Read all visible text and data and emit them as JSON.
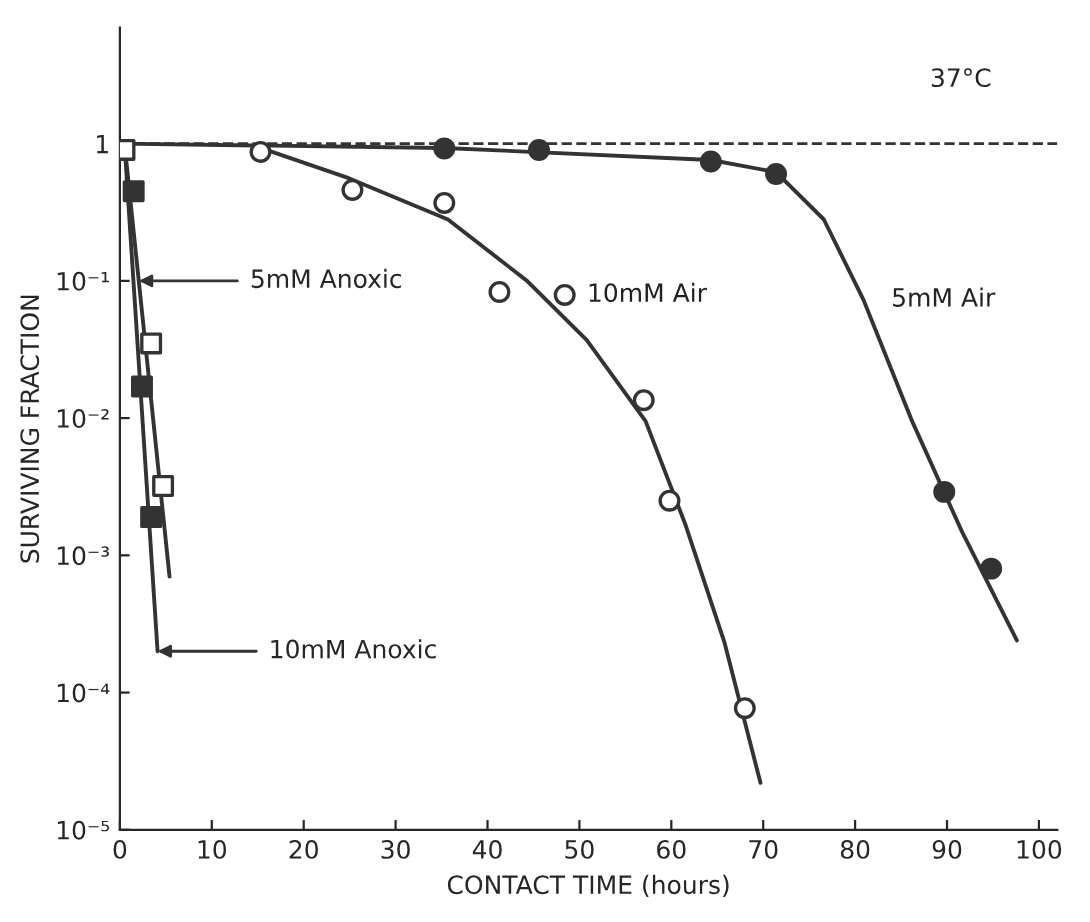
{
  "chart_data": {
    "type": "line",
    "xlabel": "CONTACT TIME (hours)",
    "ylabel": "SURVIVING FRACTION",
    "log": "y",
    "xlim": [
      0,
      102
    ],
    "xticks": [
      0,
      10,
      20,
      30,
      40,
      50,
      60,
      70,
      80,
      90,
      100
    ],
    "ylim": [
      1e-05,
      7
    ],
    "yticks": [
      {
        "value": 1,
        "label": "1"
      },
      {
        "value": 0.1,
        "label": "10⁻¹"
      },
      {
        "value": 0.01,
        "label": "10⁻²"
      },
      {
        "value": 0.001,
        "label": "10⁻³"
      },
      {
        "value": 0.0001,
        "label": "10⁻⁴"
      },
      {
        "value": 1e-05,
        "label": "10⁻⁵"
      }
    ],
    "grid": false,
    "legend": false,
    "ref_lines": [
      {
        "axis": "y",
        "value": 1,
        "color": "#333333",
        "line_style": "dashed"
      }
    ],
    "annotations": [
      "37°C",
      "5mM Anoxic",
      "10mM Anoxic"
    ],
    "series": [
      {
        "color": "#333333",
        "x": [
          15.3,
          24.9,
          35.7,
          44.3,
          50.8,
          57.2,
          61.5,
          65.8,
          69.7
        ],
        "values": [
          0.93,
          0.56,
          0.28,
          0.1,
          0.037,
          0.0095,
          0.0017,
          0.00023,
          2.2e-05
        ]
      },
      {
        "type": "scatter",
        "name": "10mM Air",
        "color": "#ffffff",
        "marker": "circle",
        "x": [
          15.3,
          25.3,
          35.3,
          41.3,
          48.4,
          57.0,
          59.8,
          68.0
        ],
        "values": [
          0.87,
          0.46,
          0.37,
          0.083,
          0.079,
          0.0135,
          0.0025,
          7.7e-05
        ]
      },
      {
        "name": "5mM Air",
        "color": "#333333",
        "x": [
          0,
          35.3,
          64.3,
          71.4,
          76.6,
          80.9,
          86.2,
          91.6,
          97.6
        ],
        "values": [
          1,
          0.93,
          0.76,
          0.62,
          0.28,
          0.073,
          0.0095,
          0.0015,
          0.00024
        ]
      },
      {
        "type": "scatter",
        "color": "#333333",
        "marker": "circle",
        "x": [
          35.3,
          45.6,
          64.3,
          71.4,
          89.7,
          94.8
        ],
        "values": [
          0.92,
          0.9,
          0.74,
          0.6,
          0.0029,
          0.0008
        ]
      },
      {
        "color": "#333333",
        "x": [
          0.5,
          5.4
        ],
        "values": [
          1,
          0.0007
        ]
      },
      {
        "type": "scatter",
        "color": "#ffffff",
        "marker": "square",
        "x": [
          0.5,
          3.4,
          4.7
        ],
        "values": [
          0.9,
          0.035,
          0.0032
        ]
      },
      {
        "color": "#333333",
        "x": [
          0.5,
          4.1
        ],
        "values": [
          1,
          0.0002
        ]
      },
      {
        "type": "scatter",
        "color": "#333333",
        "marker": "square",
        "x": [
          1.5,
          2.4,
          3.4
        ],
        "values": [
          0.45,
          0.017,
          0.0019
        ]
      }
    ]
  }
}
